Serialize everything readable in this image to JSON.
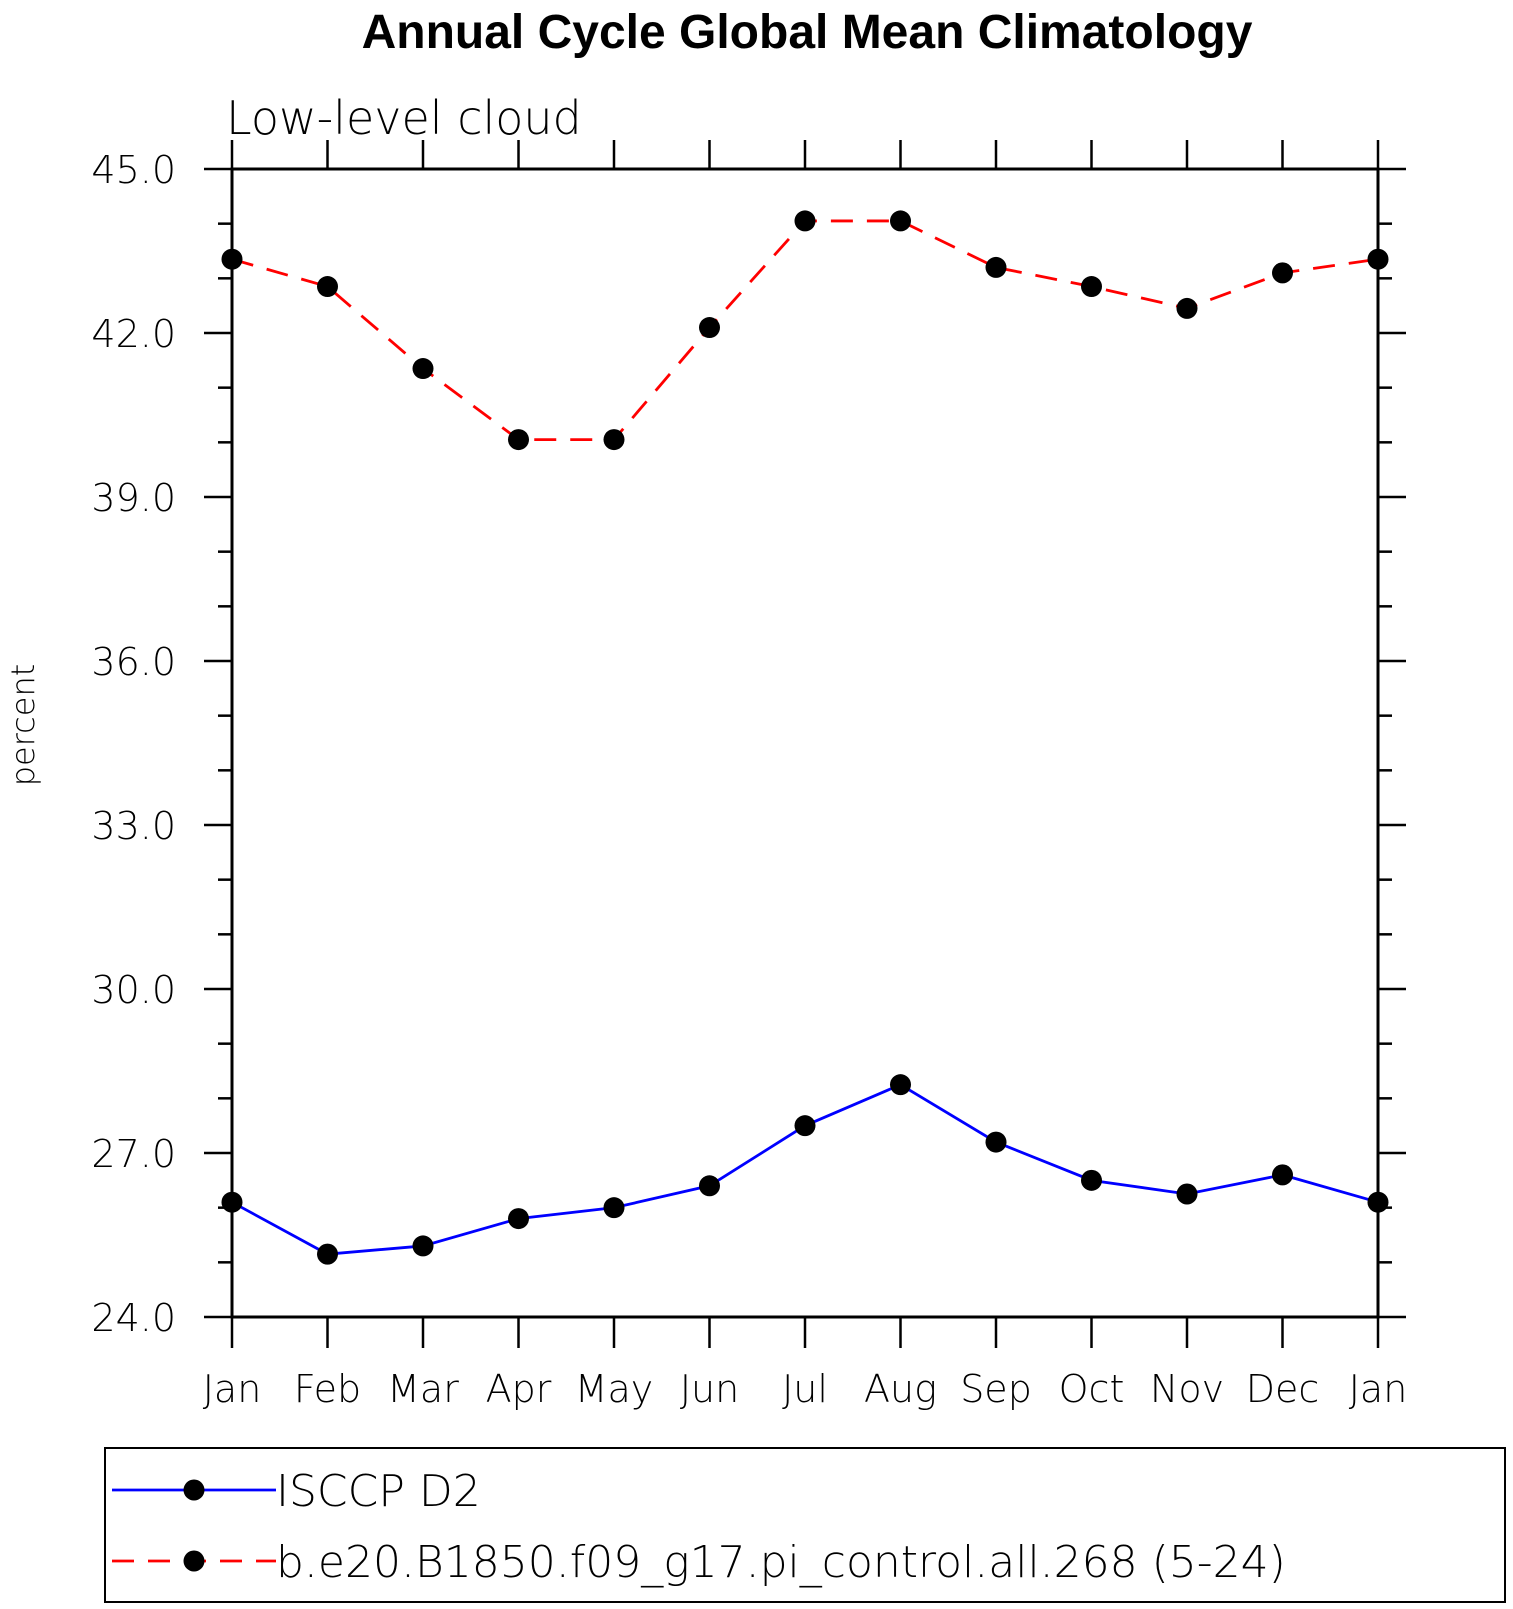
{
  "chart_data": {
    "type": "line",
    "title": "Annual Cycle Global Mean Climatology",
    "subtitle": "Low-level cloud",
    "xlabel": "",
    "ylabel": "percent",
    "categories": [
      "Jan",
      "Feb",
      "Mar",
      "Apr",
      "May",
      "Jun",
      "Jul",
      "Aug",
      "Sep",
      "Oct",
      "Nov",
      "Dec",
      "Jan"
    ],
    "ylim": [
      24.0,
      45.0
    ],
    "y_ticks": [
      "24.0",
      "27.0",
      "30.0",
      "33.0",
      "36.0",
      "39.0",
      "42.0",
      "45.0"
    ],
    "y_minor_step": 1.0,
    "grid": false,
    "legend_position": "bottom",
    "series": [
      {
        "name": "ISCCP D2",
        "color": "#0000ff",
        "line_style": "solid",
        "marker": "filled-circle",
        "values": [
          26.1,
          25.15,
          25.3,
          25.8,
          26.0,
          26.4,
          27.5,
          28.25,
          27.2,
          26.5,
          26.25,
          26.6,
          26.1
        ]
      },
      {
        "name": "b.e20.B1850.f09_g17.pi_control.all.268 (5-24)",
        "color": "#ff0000",
        "line_style": "dashed",
        "marker": "filled-circle",
        "values": [
          43.35,
          42.85,
          41.35,
          40.05,
          40.05,
          42.1,
          44.05,
          44.05,
          43.2,
          42.85,
          42.45,
          43.1,
          43.35
        ]
      }
    ]
  }
}
